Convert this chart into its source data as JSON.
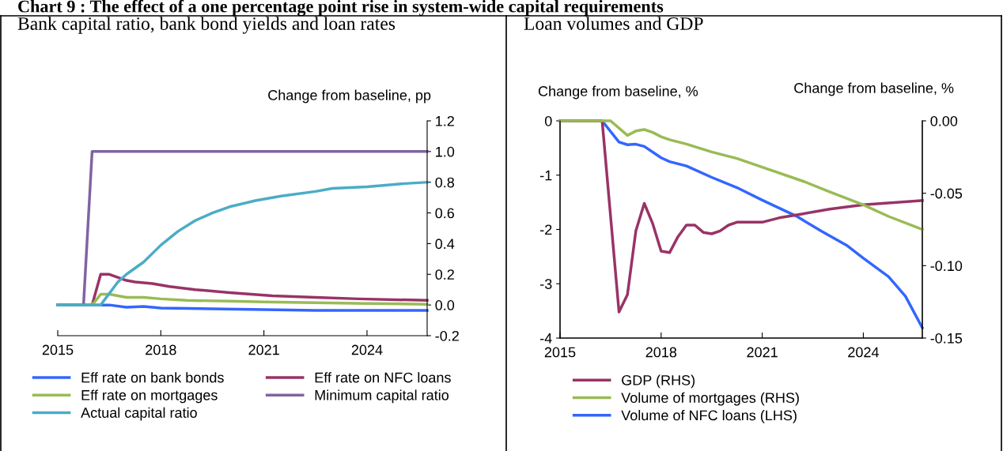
{
  "chart_data": [
    {
      "type": "line",
      "title": "Bank capital ratio, bank bond yields and loan rates",
      "ylabel": "Change from baseline, pp",
      "annotations": [
        "Chart 9 : The effect of a one percentage point rise in system-wide capital requirements"
      ],
      "xlim": [
        2015,
        2025.75
      ],
      "xticks": [
        2015,
        2018,
        2021,
        2024
      ],
      "ylim": [
        -0.2,
        1.2
      ],
      "yticks": [
        -0.2,
        {
          "value": 0,
          "label": "0.0"
        },
        0.2,
        0.4,
        0.6,
        0.8,
        {
          "value": 1,
          "label": "1.0"
        },
        1.2
      ],
      "legend": "bottom",
      "grid": false,
      "marker": "none",
      "line_style": "solid",
      "series": [
        {
          "name": "Eff rate on bank bonds",
          "color": "#3366ff",
          "x": [
            2015,
            2016.5,
            2017,
            2017.5,
            2018,
            2019.5,
            2021,
            2022.5,
            2025.75
          ],
          "values": [
            0,
            0,
            -0.015,
            -0.01,
            -0.02,
            -0.025,
            -0.03,
            -0.035,
            -0.035
          ]
        },
        {
          "name": "Eff rate on NFC loans",
          "color": "#993366",
          "x": [
            2015,
            2016,
            2016.25,
            2016.5,
            2017,
            2017.25,
            2017.75,
            2018.25,
            2019,
            2020,
            2021.25,
            2022.5,
            2023.75,
            2025.75
          ],
          "values": [
            0,
            0,
            0.2,
            0.2,
            0.16,
            0.15,
            0.14,
            0.12,
            0.1,
            0.08,
            0.06,
            0.05,
            0.04,
            0.03
          ]
        },
        {
          "name": "Eff rate on mortgages",
          "color": "#99bb55",
          "x": [
            2015,
            2016,
            2016.25,
            2016.5,
            2017,
            2017.5,
            2018,
            2018.75,
            2020,
            2021,
            2022.5,
            2024,
            2025.75
          ],
          "values": [
            0,
            0,
            0.07,
            0.07,
            0.05,
            0.05,
            0.04,
            0.03,
            0.025,
            0.02,
            0.015,
            0.01,
            0.005
          ]
        },
        {
          "name": "Minimum capital ratio",
          "color": "#8064a2",
          "x": [
            2015,
            2015.75,
            2016,
            2025.75
          ],
          "values": [
            0,
            0,
            1.0,
            1.0
          ]
        },
        {
          "name": "Actual capital ratio",
          "color": "#4bacc6",
          "x": [
            2015,
            2016.25,
            2016.75,
            2017,
            2017.25,
            2017.5,
            2018,
            2018.5,
            2019,
            2019.5,
            2020,
            2020.75,
            2021.5,
            2022.5,
            2023,
            2024,
            2025,
            2025.75
          ],
          "values": [
            0,
            0,
            0.15,
            0.2,
            0.24,
            0.28,
            0.39,
            0.48,
            0.55,
            0.6,
            0.64,
            0.68,
            0.71,
            0.74,
            0.76,
            0.77,
            0.79,
            0.8
          ]
        }
      ]
    },
    {
      "type": "line",
      "title": "Loan volumes and GDP",
      "ylabel": "Change from baseline, %",
      "y2label": "Change from baseline, %",
      "xlim": [
        2015,
        2025.75
      ],
      "xticks": [
        2015,
        2018,
        2021,
        2024
      ],
      "ylim": [
        -4,
        0
      ],
      "yticks": [
        -4,
        -3,
        -2,
        -1,
        0
      ],
      "y2lim": [
        -0.15,
        0
      ],
      "y2ticks": [
        {
          "value": -0.15,
          "label": "-0.15"
        },
        {
          "value": -0.1,
          "label": "-0.10"
        },
        {
          "value": -0.05,
          "label": "-0.05"
        },
        {
          "value": 0,
          "label": "0.00"
        }
      ],
      "legend": "bottom",
      "grid": false,
      "marker": "none",
      "line_style": "solid",
      "series": [
        {
          "name": "GDP (RHS)",
          "color": "#993366",
          "axis": "y2",
          "x": [
            2015,
            2016.25,
            2016.75,
            2017,
            2017.25,
            2017.5,
            2017.75,
            2018,
            2018.25,
            2018.5,
            2018.75,
            2019,
            2019.25,
            2019.5,
            2019.75,
            2020,
            2020.25,
            2020.75,
            2021,
            2021.5,
            2022,
            2023,
            2024,
            2025.75
          ],
          "values": [
            0,
            0,
            -0.132,
            -0.12,
            -0.076,
            -0.057,
            -0.071,
            -0.09,
            -0.091,
            -0.08,
            -0.072,
            -0.072,
            -0.077,
            -0.078,
            -0.076,
            -0.072,
            -0.07,
            -0.07,
            -0.07,
            -0.067,
            -0.065,
            -0.061,
            -0.058,
            -0.055
          ]
        },
        {
          "name": "Volume of mortgages (RHS)",
          "color": "#99bb55",
          "axis": "y2",
          "x": [
            2015,
            2016.5,
            2017,
            2017.25,
            2017.5,
            2017.75,
            2018,
            2018.25,
            2018.75,
            2019.5,
            2020.25,
            2021,
            2022.25,
            2023,
            2024,
            2024.75,
            2025.75
          ],
          "values": [
            0,
            0,
            -0.01,
            -0.007,
            -0.006,
            -0.008,
            -0.011,
            -0.013,
            -0.016,
            -0.0215,
            -0.026,
            -0.032,
            -0.042,
            -0.049,
            -0.058,
            -0.066,
            -0.075
          ]
        },
        {
          "name": "Volume of NFC loans (LHS)",
          "color": "#3366ff",
          "x": [
            2015,
            2016.25,
            2016.75,
            2017,
            2017.25,
            2017.5,
            2018,
            2018.25,
            2018.75,
            2019.5,
            2020.25,
            2021,
            2022,
            2022.75,
            2023.5,
            2024,
            2024.75,
            2025.25,
            2025.75
          ],
          "values": [
            0,
            0,
            -0.39,
            -0.44,
            -0.43,
            -0.47,
            -0.68,
            -0.75,
            -0.83,
            -1.04,
            -1.23,
            -1.46,
            -1.75,
            -2.03,
            -2.29,
            -2.53,
            -2.87,
            -3.23,
            -3.81
          ]
        }
      ]
    }
  ]
}
